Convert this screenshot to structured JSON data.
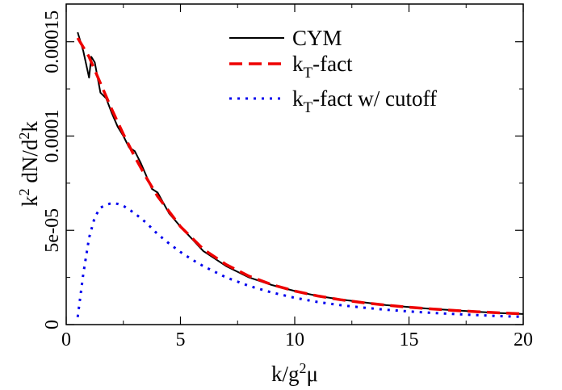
{
  "chart_data": {
    "type": "line",
    "xlabel": {
      "base": "k/g",
      "sup": "2",
      "tail": "μ"
    },
    "ylabel": {
      "p1": "k",
      "s1": "2",
      "p2": " dN/d",
      "s2": "2",
      "p3": "k"
    },
    "xlim": [
      0,
      20
    ],
    "ylim": [
      0,
      0.00017
    ],
    "x_ticks": [
      0,
      5,
      10,
      15,
      20
    ],
    "x_tick_labels": [
      "0",
      "5",
      "10",
      "15",
      "20"
    ],
    "y_ticks": [
      0,
      5e-05,
      0.0001,
      0.00015
    ],
    "y_tick_labels": [
      "0",
      "5e-05",
      "0.0001",
      "0.00015"
    ],
    "grid": false,
    "legend_placement": "top-right",
    "series": [
      {
        "name": "CYM",
        "label": {
          "base": "CYM",
          "sub": "",
          "tail": ""
        },
        "color": "#000000",
        "style": "solid",
        "x": [
          0.5,
          0.75,
          1.0,
          1.1,
          1.25,
          1.5,
          1.75,
          2.0,
          2.25,
          2.5,
          2.75,
          3.0,
          3.25,
          3.5,
          3.75,
          4.0,
          4.5,
          5.0,
          6.0,
          7.0,
          8.0,
          9.0,
          10.0,
          11.0,
          12.0,
          13.0,
          14.0,
          15.0,
          16.0,
          17.0,
          18.0,
          19.0,
          20.0
        ],
        "y": [
          0.000155,
          0.000145,
          0.000131,
          0.000142,
          0.000139,
          0.000123,
          0.00012,
          0.000112,
          0.000105,
          0.0001,
          9.4e-05,
          9.2e-05,
          8.6e-05,
          7.9e-05,
          7.2e-05,
          7e-05,
          5.9e-05,
          5.2e-05,
          3.9e-05,
          3.1e-05,
          2.5e-05,
          2.1e-05,
          1.78e-05,
          1.52e-05,
          1.33e-05,
          1.18e-05,
          1.03e-05,
          9.3e-06,
          8.3e-06,
          7.6e-06,
          6.8e-06,
          6.1e-06,
          5.6e-06
        ]
      },
      {
        "name": "kT-fact",
        "label": {
          "base": "k",
          "sub": "T",
          "tail": "-fact"
        },
        "color": "#ee0000",
        "style": "dashed",
        "x": [
          0.5,
          1.0,
          1.5,
          2.0,
          2.5,
          3.0,
          3.5,
          4.0,
          4.5,
          5.0,
          5.5,
          6.0,
          7.0,
          8.0,
          9.0,
          10.0,
          11.0,
          12.0,
          13.0,
          14.0,
          15.0,
          16.0,
          17.0,
          18.0,
          19.0,
          20.0
        ],
        "y": [
          0.000152,
          0.000142,
          0.000128,
          0.000114,
          0.000101,
          8.9e-05,
          7.8e-05,
          6.8e-05,
          6e-05,
          5.2e-05,
          4.6e-05,
          4e-05,
          3.18e-05,
          2.57e-05,
          2.12e-05,
          1.78e-05,
          1.52e-05,
          1.32e-05,
          1.16e-05,
          1.03e-05,
          9.2e-06,
          8.3e-06,
          7.5e-06,
          6.8e-06,
          6.2e-06,
          5.7e-06
        ]
      },
      {
        "name": "kT-fact w/ cutoff",
        "label": {
          "base": "k",
          "sub": "T",
          "tail": "-fact w/ cutoff"
        },
        "color": "#0000ee",
        "style": "dotted",
        "x": [
          0.5,
          0.75,
          1.0,
          1.25,
          1.5,
          1.75,
          2.0,
          2.25,
          2.5,
          2.75,
          3.0,
          3.5,
          4.0,
          4.5,
          5.0,
          5.5,
          6.0,
          7.0,
          8.0,
          9.0,
          10.0,
          11.0,
          12.0,
          13.0,
          14.0,
          15.0,
          16.0,
          17.0,
          18.0,
          19.0,
          20.0
        ],
        "y": [
          4e-06,
          2.7e-05,
          4.6e-05,
          5.7e-05,
          6.2e-05,
          6.35e-05,
          6.45e-05,
          6.4e-05,
          6.3e-05,
          6.1e-05,
          5.9e-05,
          5.4e-05,
          4.8e-05,
          4.3e-05,
          3.85e-05,
          3.45e-05,
          3.1e-05,
          2.5e-05,
          2.05e-05,
          1.7e-05,
          1.42e-05,
          1.2e-05,
          1.03e-05,
          9e-06,
          7.9e-06,
          7e-06,
          6.2e-06,
          5.6e-06,
          5e-06,
          4.5e-06,
          4.1e-06
        ]
      }
    ]
  }
}
